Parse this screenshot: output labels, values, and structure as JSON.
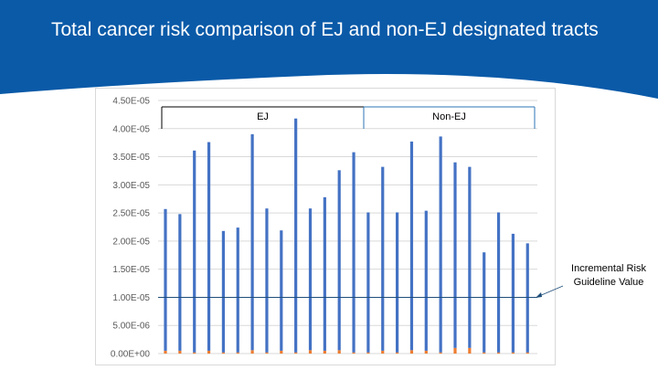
{
  "slide": {
    "title": "Total cancer risk comparison of EJ and non-EJ designated tracts"
  },
  "colors": {
    "header_blue": "#0a5aa8",
    "bar_blue": "#4472c4",
    "bar_orange": "#ed7d31",
    "gridline": "#d9d9d9",
    "guideline": "#1f4e79",
    "bracket_ej": "#000000",
    "bracket_nonej": "#2e75b6"
  },
  "chart_data": {
    "type": "bar",
    "stacked": true,
    "ylim": [
      0,
      4.5e-05
    ],
    "y_ticks": [
      0,
      5e-06,
      1e-05,
      1.5e-05,
      2e-05,
      2.5e-05,
      3e-05,
      3.5e-05,
      4e-05,
      4.5e-05
    ],
    "y_tick_labels": [
      "0.00E+00",
      "5.00E-06",
      "1.00E-05",
      "1.50E-05",
      "2.00E-05",
      "2.50E-05",
      "3.00E-05",
      "3.50E-05",
      "4.00E-05",
      "4.50E-05"
    ],
    "grid": true,
    "series": [
      {
        "color": "#4472c4",
        "values": [
          2.52e-05,
          2.43e-05,
          3.59e-05,
          3.71e-05,
          2.16e-05,
          2.22e-05,
          3.84e-05,
          2.56e-05,
          2.14e-05,
          4.16e-05,
          2.52e-05,
          2.73e-05,
          3.2e-05,
          3.56e-05,
          2.49e-05,
          3.27e-05,
          2.49e-05,
          3.71e-05,
          2.49e-05,
          3.84e-05,
          3.3e-05,
          3.22e-05,
          1.78e-05,
          2.49e-05,
          2.11e-05,
          1.94e-05
        ]
      },
      {
        "color": "#ed7d31",
        "values": [
          5e-07,
          5e-07,
          2e-07,
          5e-07,
          2e-07,
          2e-07,
          6e-07,
          2e-07,
          5e-07,
          2e-07,
          6e-07,
          5e-07,
          6e-07,
          2e-07,
          2e-07,
          5e-07,
          2e-07,
          6e-07,
          5e-07,
          2e-07,
          1e-06,
          1e-06,
          2e-07,
          2e-07,
          2e-07,
          2e-07
        ]
      }
    ],
    "groups": [
      {
        "label": "EJ",
        "start": 0,
        "end": 14
      },
      {
        "label": "Non-EJ",
        "start": 14,
        "end": 26
      }
    ],
    "reference_line": {
      "value": 1e-05,
      "label_line1": "Incremental Risk",
      "label_line2": "Guideline Value"
    }
  }
}
